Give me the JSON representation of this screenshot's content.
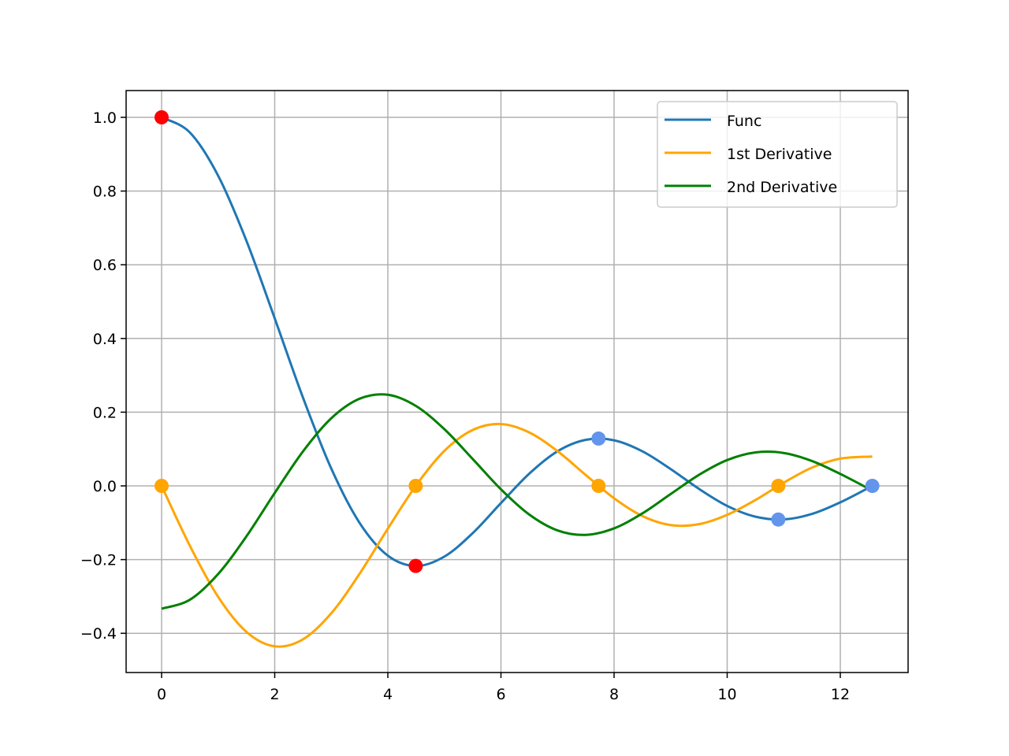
{
  "chart_data": {
    "type": "line",
    "title": "",
    "xlabel": "",
    "ylabel": "",
    "xlim": [
      -0.63,
      13.2
    ],
    "ylim": [
      -0.508,
      1.072
    ],
    "grid": true,
    "legend_position": "upper right",
    "xticks": [
      0,
      2,
      4,
      6,
      8,
      10,
      12
    ],
    "xtick_labels": [
      "0",
      "2",
      "4",
      "6",
      "8",
      "10",
      "12"
    ],
    "yticks": [
      -0.4,
      -0.2,
      0.0,
      0.2,
      0.4,
      0.6,
      0.8,
      1.0
    ],
    "ytick_labels": [
      "−0.4",
      "−0.2",
      "0.0",
      "0.2",
      "0.4",
      "0.6",
      "0.8",
      "1.0"
    ],
    "x": [
      0,
      0.5,
      1,
      1.5,
      2,
      2.5,
      3,
      3.5,
      4,
      4.5,
      5,
      5.5,
      6,
      6.5,
      7,
      7.5,
      8,
      8.5,
      9,
      9.5,
      10,
      10.5,
      11,
      11.5,
      12,
      12.566
    ],
    "series": [
      {
        "name": "Func",
        "color": "#1f77b4",
        "values": [
          1,
          0.9589,
          0.8415,
          0.665,
          0.4546,
          0.2394,
          0.047,
          -0.1002,
          -0.1892,
          -0.2172,
          -0.1918,
          -0.1283,
          -0.0466,
          0.0331,
          0.0939,
          0.125,
          0.1237,
          0.0939,
          0.0458,
          -0.0079,
          -0.0544,
          -0.0836,
          -0.0909,
          -0.0761,
          -0.0447,
          0
        ]
      },
      {
        "name": "1st Derivative",
        "color": "#ffa500",
        "values": [
          0,
          -0.1625,
          -0.3012,
          -0.3961,
          -0.4354,
          -0.4163,
          -0.3457,
          -0.2386,
          -0.1161,
          0.0014,
          0.0951,
          0.1517,
          0.1678,
          0.1451,
          0.0943,
          0.0295,
          -0.0337,
          -0.0817,
          -0.1063,
          -0.1039,
          -0.0785,
          -0.0383,
          0.0087,
          0.0496,
          0.074,
          0.0796
        ]
      },
      {
        "name": "2nd Derivative",
        "color": "#008000",
        "values": [
          -0.3333,
          -0.3089,
          -0.2391,
          -0.1369,
          -0.0192,
          0.0936,
          0.1835,
          0.2365,
          0.2473,
          0.2166,
          0.1538,
          0.0731,
          -0.0093,
          -0.0777,
          -0.1208,
          -0.1329,
          -0.1153,
          -0.0747,
          -0.0222,
          0.0298,
          0.0701,
          0.0909,
          0.0893,
          0.0675,
          0.0324,
          -0.0127
        ]
      }
    ],
    "markers": [
      {
        "x": 0,
        "y": 1.0,
        "color": "#ff0000"
      },
      {
        "x": 4.493,
        "y": -0.2172,
        "color": "#ff0000"
      },
      {
        "x": 7.725,
        "y": 0.1284,
        "color": "#6495ed"
      },
      {
        "x": 10.904,
        "y": -0.0913,
        "color": "#6495ed"
      },
      {
        "x": 12.566,
        "y": 0.0,
        "color": "#6495ed"
      },
      {
        "x": 0,
        "y": 0.0,
        "color": "#ffa500"
      },
      {
        "x": 4.493,
        "y": 0.0,
        "color": "#ffa500"
      },
      {
        "x": 7.725,
        "y": 0.0,
        "color": "#ffa500"
      },
      {
        "x": 10.904,
        "y": 0.0,
        "color": "#ffa500"
      }
    ],
    "legend": [
      "Func",
      "1st Derivative",
      "2nd Derivative"
    ]
  }
}
